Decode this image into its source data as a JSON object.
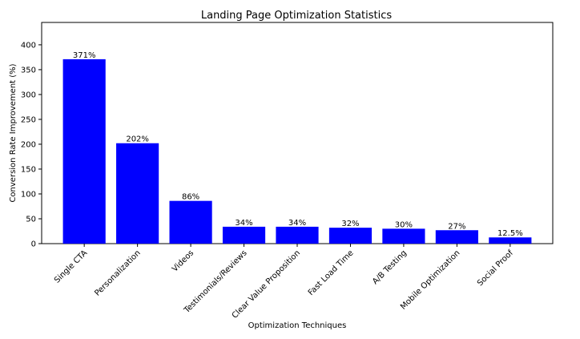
{
  "chart_data": {
    "type": "bar",
    "title": "Landing Page Optimization Statistics",
    "xlabel": "Optimization Techniques",
    "ylabel": "Conversion Rate Improvement (%)",
    "categories": [
      "Single CTA",
      "Personalization",
      "Videos",
      "Testimonials/Reviews",
      "Clear Value Proposition",
      "Fast Load Time",
      "A/B Testing",
      "Mobile Optimization",
      "Social Proof"
    ],
    "values": [
      371,
      202,
      86,
      34,
      34,
      32,
      30,
      27,
      12.5
    ],
    "data_labels": [
      "371%",
      "202%",
      "86%",
      "34%",
      "34%",
      "32%",
      "30%",
      "27%",
      "12.5%"
    ],
    "ylim": [
      0,
      445
    ],
    "yticks": [
      0,
      50,
      100,
      150,
      200,
      250,
      300,
      350,
      400
    ],
    "bar_color": "#0000ff",
    "grid": false,
    "legend": "none"
  }
}
